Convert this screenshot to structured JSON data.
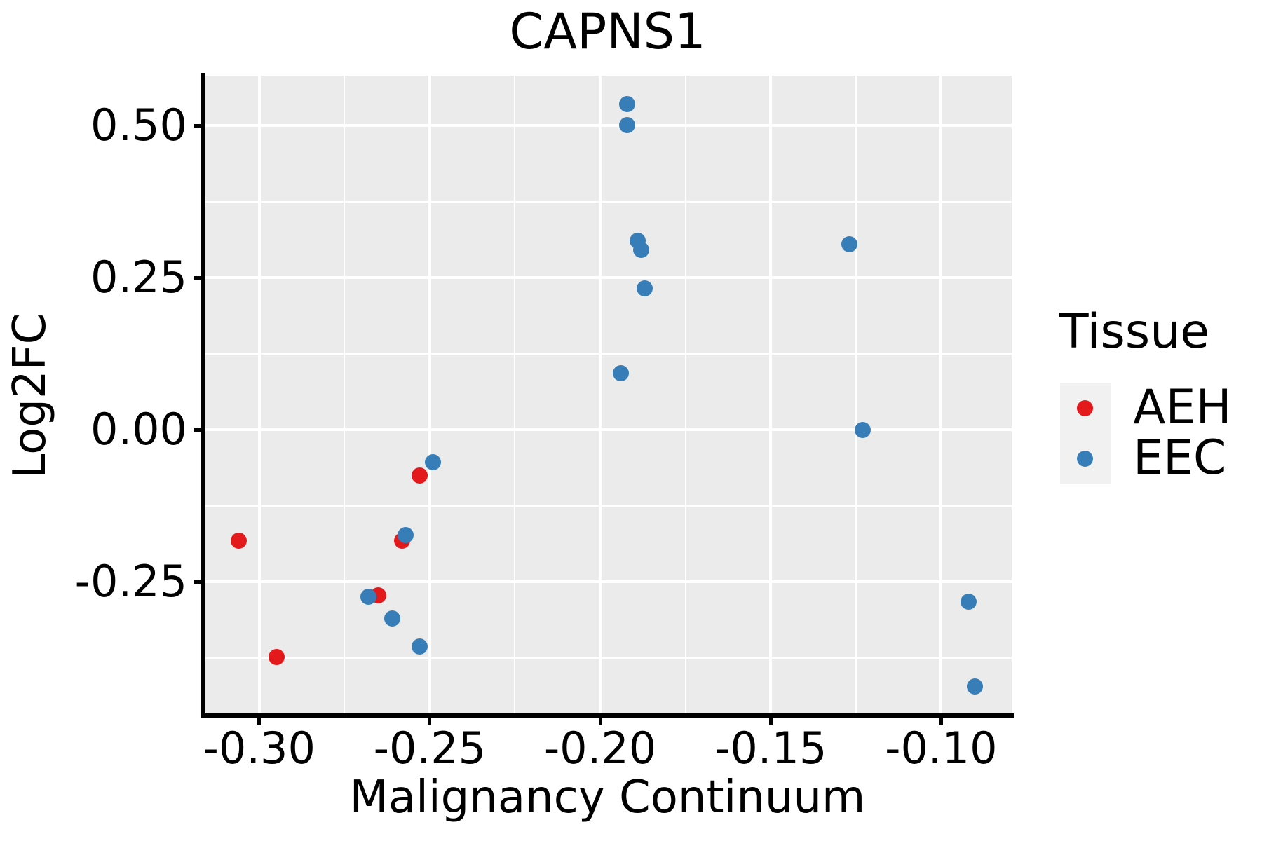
{
  "chart_data": {
    "type": "scatter",
    "title": "CAPNS1",
    "xlabel": "Malignancy Continuum",
    "ylabel": "Log2FC",
    "legend_title": "Tissue",
    "legend_position": "right",
    "grid": true,
    "panel_bg": "#EBEBEB",
    "grid_color": "#FFFFFF",
    "axis_color": "#000000",
    "xlim": [
      -0.3164,
      -0.0793
    ],
    "ylim": [
      -0.47,
      0.5818
    ],
    "x_major_ticks": [
      -0.3,
      -0.25,
      -0.2,
      -0.15,
      -0.1
    ],
    "x_tick_labels": [
      "-0.30",
      "-0.25",
      "-0.20",
      "-0.15",
      "-0.10"
    ],
    "x_minor_ticks": [
      -0.275,
      -0.225,
      -0.175,
      -0.125
    ],
    "y_major_ticks": [
      0.5,
      0.25,
      0.0,
      -0.25
    ],
    "y_tick_labels": [
      "0.50",
      "0.25",
      "0.00",
      "-0.25"
    ],
    "y_minor_ticks": [
      0.375,
      0.125,
      -0.125,
      -0.375
    ],
    "marker_diameter": 23,
    "series": [
      {
        "name": "AEH",
        "color": "#E3191C",
        "points": [
          {
            "x": -0.306,
            "y": -0.183
          },
          {
            "x": -0.253,
            "y": -0.075
          },
          {
            "x": -0.258,
            "y": -0.183
          },
          {
            "x": -0.265,
            "y": -0.272
          },
          {
            "x": -0.295,
            "y": -0.374
          }
        ]
      },
      {
        "name": "EEC",
        "color": "#377EB8",
        "points": [
          {
            "x": -0.192,
            "y": 0.535
          },
          {
            "x": -0.192,
            "y": 0.501
          },
          {
            "x": -0.189,
            "y": 0.311
          },
          {
            "x": -0.188,
            "y": 0.295
          },
          {
            "x": -0.187,
            "y": 0.232
          },
          {
            "x": -0.194,
            "y": 0.093
          },
          {
            "x": -0.127,
            "y": 0.305
          },
          {
            "x": -0.123,
            "y": 0.0
          },
          {
            "x": -0.249,
            "y": -0.054
          },
          {
            "x": -0.257,
            "y": -0.173
          },
          {
            "x": -0.268,
            "y": -0.275
          },
          {
            "x": -0.261,
            "y": -0.311
          },
          {
            "x": -0.253,
            "y": -0.357
          },
          {
            "x": -0.092,
            "y": -0.283
          },
          {
            "x": -0.09,
            "y": -0.422
          }
        ]
      }
    ]
  }
}
